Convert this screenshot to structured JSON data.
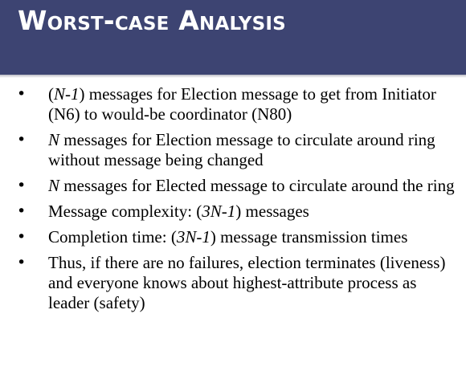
{
  "slide": {
    "title": "Worst-case Analysis",
    "bullet_symbol": "•",
    "bullets": [
      {
        "segments": [
          {
            "text": "(",
            "italic": false
          },
          {
            "text": "N-1",
            "italic": true
          },
          {
            "text": ") messages for Election message to get from Initiator (N6) to would-be coordinator (N80)",
            "italic": false
          }
        ]
      },
      {
        "segments": [
          {
            "text": "N",
            "italic": true
          },
          {
            "text": " messages for Election message to circulate around ring without message being changed",
            "italic": false
          }
        ]
      },
      {
        "segments": [
          {
            "text": "N",
            "italic": true
          },
          {
            "text": " messages for Elected message to circulate around the ring",
            "italic": false
          }
        ]
      },
      {
        "segments": [
          {
            "text": "Message complexity: (",
            "italic": false
          },
          {
            "text": "3N-1",
            "italic": true
          },
          {
            "text": ") messages",
            "italic": false
          }
        ]
      },
      {
        "segments": [
          {
            "text": "Completion time: (",
            "italic": false
          },
          {
            "text": "3N-1",
            "italic": true
          },
          {
            "text": ") message transmission times",
            "italic": false
          }
        ]
      },
      {
        "segments": [
          {
            "text": "Thus, if there are no failures, election terminates (liveness) and everyone knows about highest-attribute process as leader (safety)",
            "italic": false
          }
        ]
      }
    ]
  },
  "colors": {
    "header_background": "#3d4472",
    "title_text": "#ffffff",
    "body_text": "#000000",
    "background": "#ffffff"
  }
}
